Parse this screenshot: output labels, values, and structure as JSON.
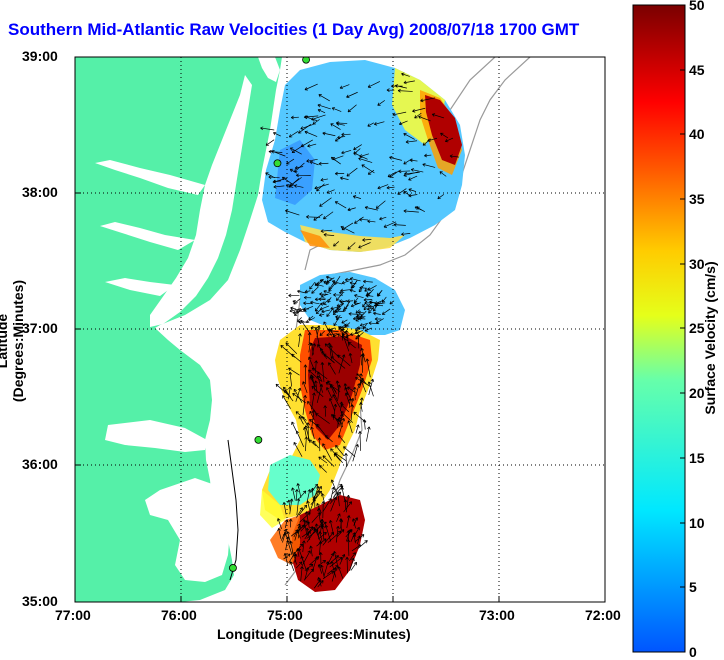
{
  "title": "Southern Mid-Atlantic Raw Velocities (1 Day Avg) 2008/07/18 1700 GMT",
  "x_axis": {
    "label": "Longitude (Degrees:Minutes)",
    "ticks": [
      "77:00",
      "76:00",
      "75:00",
      "74:00",
      "73:00",
      "72:00"
    ]
  },
  "y_axis": {
    "label": "Latitude (Degrees:Minutes)",
    "ticks": [
      "39:00",
      "38:00",
      "37:00",
      "36:00",
      "35:00"
    ]
  },
  "colorbar": {
    "label": "Surface Velocity (cm/s)",
    "ticks": [
      "50",
      "45",
      "40",
      "35",
      "30",
      "25",
      "20",
      "15",
      "10",
      "5",
      "0"
    ],
    "min": 0,
    "max": 50
  },
  "colors": {
    "land": "#55f0a8",
    "title": "#0000ff",
    "station": "#33dd33",
    "bathymetry": "#9a9a9a"
  },
  "map": {
    "lon_range": [
      -77,
      -72
    ],
    "lat_range": [
      35,
      39
    ],
    "stations": [
      {
        "lon": -74.82,
        "lat": 38.98
      },
      {
        "lon": -75.09,
        "lat": 38.22
      },
      {
        "lon": -75.27,
        "lat": 36.19
      },
      {
        "lon": -75.51,
        "lat": 35.25
      }
    ]
  }
}
